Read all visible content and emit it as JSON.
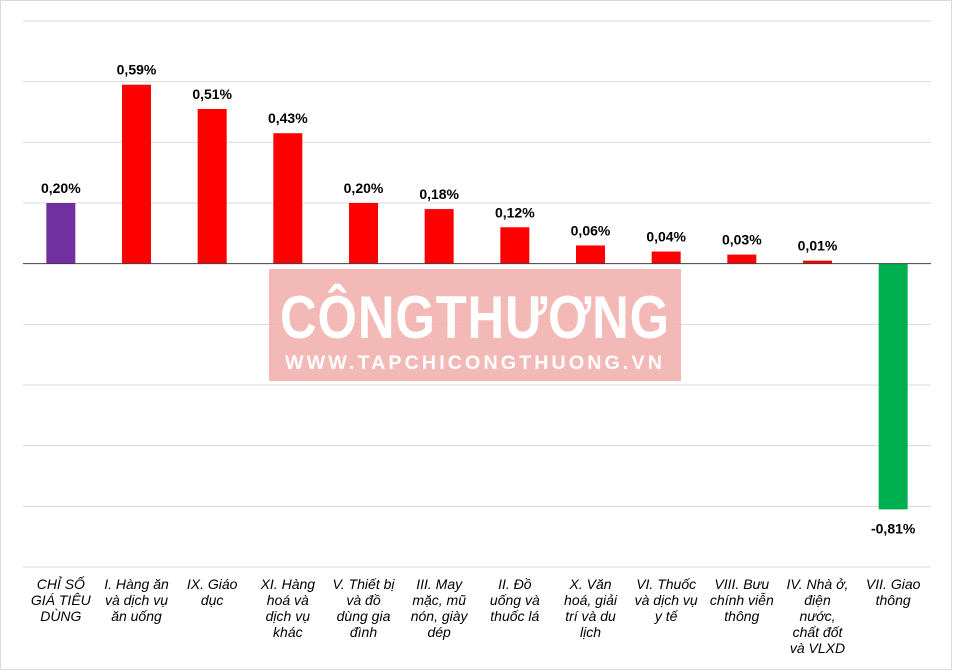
{
  "watermark": {
    "title": "CÔNGTHƯƠNG",
    "url": "WWW.TAPCHICONGTHUONG.VN"
  },
  "chart_data": {
    "type": "bar",
    "unit": "%",
    "categories": [
      "CHỈ SỐ GIÁ TIÊU DÙNG",
      "I. Hàng ăn và dịch vụ ăn uống",
      "IX. Giáo dục",
      "XI. Hàng hoá và dịch vụ khác",
      "V. Thiết bị và đồ dùng gia đình",
      "III. May mặc, mũ nón, giày dép",
      "II. Đồ uống và thuốc lá",
      "X. Văn hoá, giải trí và du lịch",
      "VI. Thuốc và dịch vụ y tế",
      "VIII. Bưu chính viễn thông",
      "IV. Nhà ở, điện nước, chất đốt và VLXD",
      "VII. Giao thông"
    ],
    "category_lines": [
      [
        "CHỈ SỐ",
        "GIÁ TIÊU",
        "DÙNG"
      ],
      [
        "I. Hàng ăn",
        "và dịch vụ",
        "ăn uống"
      ],
      [
        "IX. Giáo",
        "dục"
      ],
      [
        "XI. Hàng",
        "hoá và",
        "dịch vụ",
        "khác"
      ],
      [
        "V. Thiết bị",
        "và đồ",
        "dùng gia",
        "đình"
      ],
      [
        "III. May",
        "mặc, mũ",
        "nón, giày",
        "dép"
      ],
      [
        "II. Đồ",
        "uống và",
        "thuốc lá"
      ],
      [
        "X. Văn",
        "hoá, giải",
        "trí và du",
        "lịch"
      ],
      [
        "VI. Thuốc",
        "và dịch vụ",
        "y tế"
      ],
      [
        "VIII. Bưu",
        "chính viễn",
        "thông"
      ],
      [
        "IV. Nhà ở,",
        "điện",
        "nước,",
        "chất đốt",
        "và VLXD"
      ],
      [
        "VII. Giao",
        "thông"
      ]
    ],
    "values": [
      0.2,
      0.59,
      0.51,
      0.43,
      0.2,
      0.18,
      0.12,
      0.06,
      0.04,
      0.03,
      0.01,
      -0.81
    ],
    "labels": [
      "0,20%",
      "0,59%",
      "0,51%",
      "0,43%",
      "0,20%",
      "0,18%",
      "0,12%",
      "0,06%",
      "0,04%",
      "0,03%",
      "0,01%",
      "-0,81%"
    ],
    "colors": [
      "#7030a0",
      "#ff0000",
      "#ff0000",
      "#ff0000",
      "#ff0000",
      "#ff0000",
      "#ff0000",
      "#ff0000",
      "#ff0000",
      "#ff0000",
      "#ff0000",
      "#00b050"
    ],
    "ylim": [
      -1.0,
      0.8
    ],
    "grid": true,
    "gridlines": [
      0.8,
      0.6,
      0.4,
      0.2,
      0,
      -0.2,
      -0.4,
      -0.6,
      -0.8,
      -1.0
    ],
    "legend": "none"
  }
}
